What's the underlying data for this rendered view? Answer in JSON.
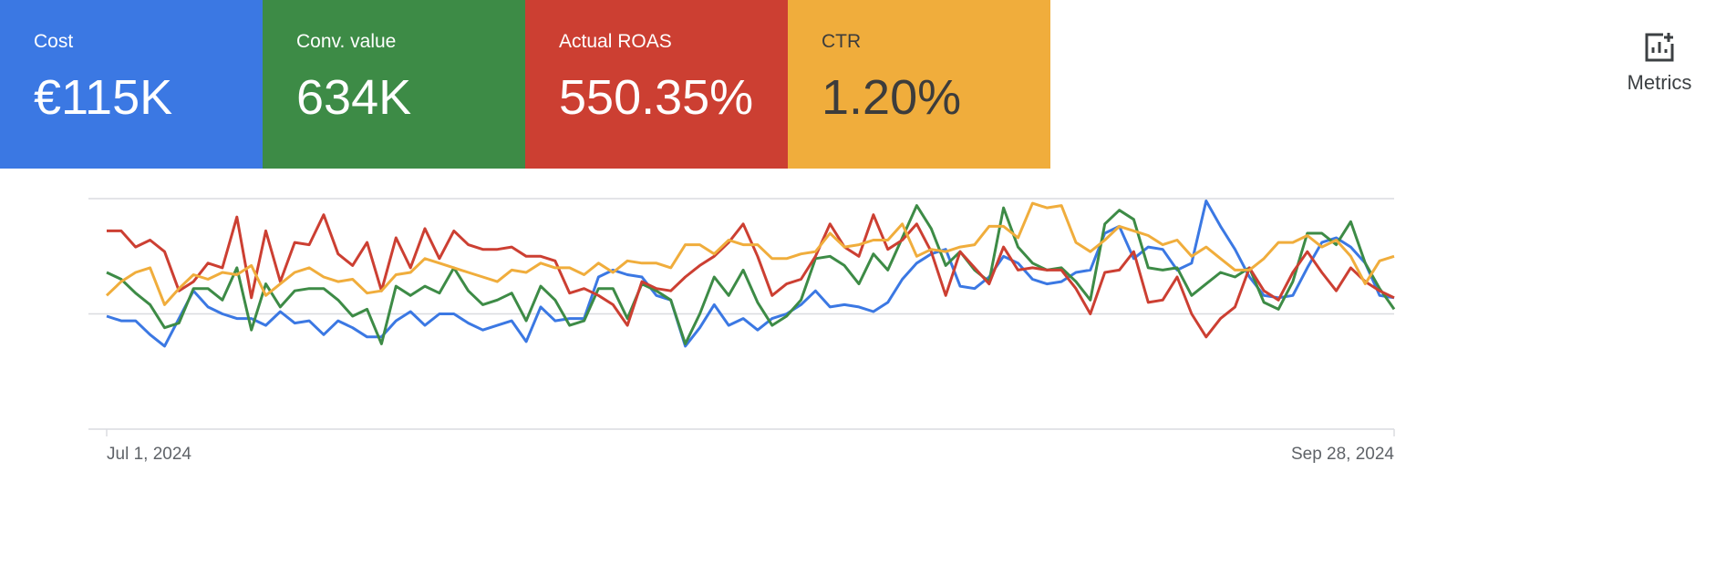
{
  "toolbar": {
    "button": "Metrics"
  },
  "chart_data": {
    "type": "line",
    "categories": [
      "Jul 1, 2024",
      null,
      null,
      null,
      null,
      null,
      null,
      null,
      null,
      null,
      null,
      null,
      null,
      null,
      null,
      null,
      null,
      null,
      null,
      null,
      null,
      null,
      null,
      null,
      null,
      null,
      null,
      null,
      null,
      null,
      null,
      null,
      null,
      null,
      null,
      null,
      null,
      null,
      null,
      null,
      null,
      null,
      null,
      null,
      null,
      null,
      null,
      null,
      null,
      null,
      null,
      null,
      null,
      null,
      null,
      null,
      null,
      null,
      null,
      null,
      null,
      null,
      null,
      null,
      null,
      null,
      null,
      null,
      null,
      null,
      null,
      null,
      null,
      null,
      null,
      null,
      null,
      null,
      null,
      null,
      null,
      null,
      null,
      null,
      null,
      null,
      null,
      null,
      null,
      "Sep 28, 2024"
    ],
    "ylim": [
      0,
      100
    ],
    "yticks": [
      0,
      50,
      100
    ],
    "tick_labels": false,
    "grid": true,
    "series": [
      {
        "name": "Cost",
        "total": "€115K",
        "color": "#3b78e3",
        "values": [
          49,
          47,
          47,
          41,
          36,
          48,
          60,
          53,
          50,
          48,
          48,
          45,
          51,
          46,
          47,
          41,
          47,
          44,
          40,
          40,
          47,
          51,
          45,
          50,
          50,
          46,
          43,
          45,
          47,
          38,
          53,
          47,
          48,
          48,
          66,
          69,
          67,
          66,
          58,
          56,
          36,
          44,
          54,
          45,
          48,
          43,
          48,
          50,
          54,
          60,
          53,
          54,
          53,
          51,
          55,
          65,
          72,
          76,
          78,
          62,
          61,
          66,
          75,
          72,
          65,
          63,
          64,
          68,
          69,
          85,
          88,
          74,
          79,
          78,
          69,
          72,
          99,
          88,
          78,
          66,
          58,
          57,
          58,
          70,
          81,
          83,
          79,
          72,
          58,
          57
        ]
      },
      {
        "name": "Conv. value",
        "total": "634K",
        "color": "#3d8b46",
        "values": [
          68,
          65,
          59,
          54,
          44,
          46,
          61,
          61,
          56,
          70,
          43,
          63,
          53,
          60,
          61,
          61,
          56,
          49,
          52,
          37,
          62,
          58,
          62,
          59,
          70,
          60,
          54,
          56,
          59,
          47,
          62,
          56,
          45,
          47,
          61,
          61,
          48,
          63,
          60,
          56,
          37,
          50,
          66,
          58,
          69,
          55,
          45,
          49,
          56,
          74,
          75,
          71,
          63,
          76,
          69,
          83,
          97,
          87,
          71,
          77,
          69,
          64,
          96,
          79,
          72,
          69,
          70,
          64,
          56,
          89,
          95,
          91,
          70,
          69,
          70,
          58,
          63,
          68,
          66,
          70,
          55,
          52,
          64,
          85,
          85,
          80,
          90,
          72,
          61,
          52
        ]
      },
      {
        "name": "Actual ROAS",
        "total": "550.35%",
        "color": "#cc3f32",
        "values": [
          86,
          86,
          79,
          82,
          77,
          60,
          64,
          72,
          70,
          92,
          57,
          86,
          64,
          81,
          80,
          93,
          76,
          71,
          81,
          60,
          83,
          70,
          87,
          74,
          86,
          80,
          78,
          78,
          79,
          75,
          75,
          73,
          59,
          61,
          58,
          54,
          45,
          64,
          61,
          60,
          66,
          71,
          75,
          81,
          89,
          75,
          58,
          63,
          65,
          75,
          89,
          79,
          75,
          93,
          78,
          82,
          89,
          77,
          58,
          77,
          70,
          63,
          79,
          69,
          70,
          69,
          69,
          61,
          50,
          68,
          69,
          77,
          55,
          56,
          66,
          50,
          40,
          48,
          53,
          70,
          60,
          56,
          68,
          77,
          68,
          60,
          70,
          64,
          60,
          57
        ]
      },
      {
        "name": "CTR",
        "total": "1.20%",
        "color": "#f0ad3c",
        "values": [
          58,
          64,
          68,
          70,
          54,
          61,
          67,
          65,
          68,
          67,
          71,
          58,
          63,
          68,
          70,
          66,
          64,
          65,
          59,
          60,
          67,
          68,
          74,
          72,
          70,
          68,
          66,
          64,
          69,
          68,
          72,
          70,
          70,
          67,
          72,
          68,
          73,
          72,
          72,
          70,
          80,
          80,
          76,
          82,
          80,
          80,
          74,
          74,
          76,
          77,
          85,
          79,
          80,
          82,
          82,
          89,
          75,
          78,
          77,
          79,
          80,
          88,
          88,
          83,
          98,
          96,
          97,
          81,
          77,
          82,
          88,
          86,
          84,
          80,
          82,
          75,
          79,
          74,
          69,
          69,
          74,
          81,
          81,
          84,
          79,
          82,
          75,
          63,
          73,
          75
        ]
      }
    ]
  }
}
